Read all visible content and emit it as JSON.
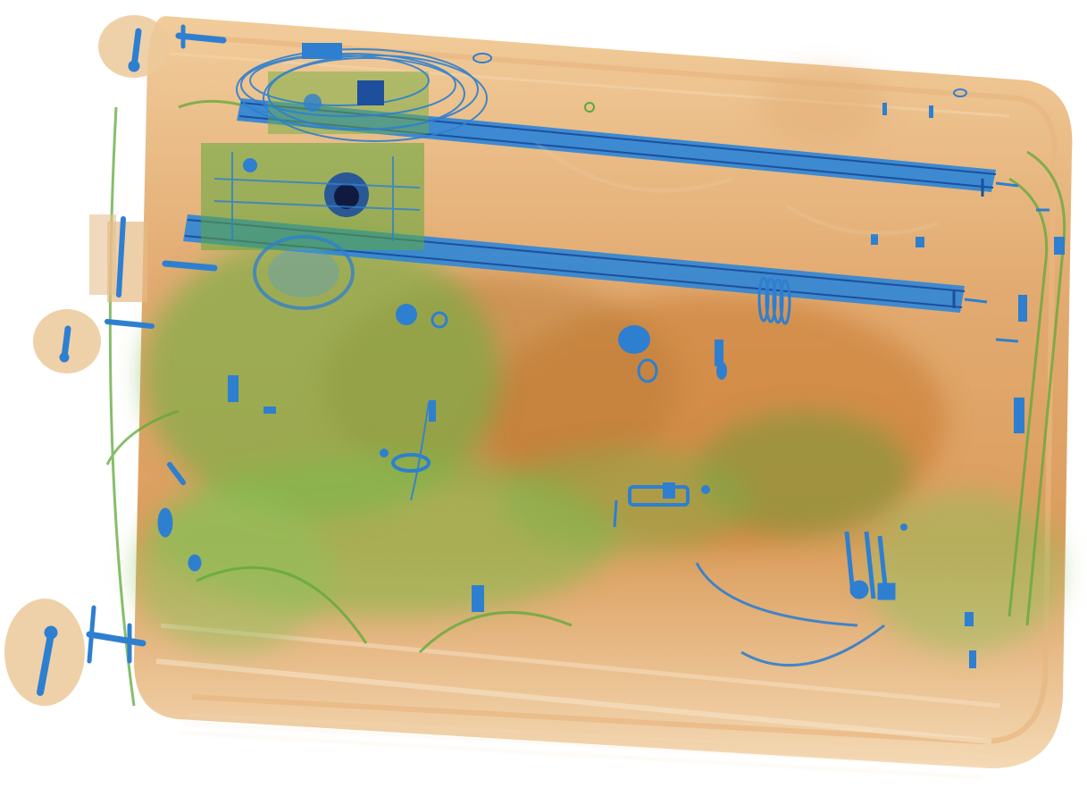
{
  "scan": {
    "colors": {
      "background": "#ffffff",
      "organic": "#d9934a",
      "organic_light": "#f0c892",
      "mixed": "#6fae3f",
      "mixed_light": "#a8d27a",
      "metal": "#2e7fd0",
      "metal_dark": "#1d4f9c",
      "dense": "#101a40"
    },
    "icons": {
      "wheel": "wheel-icon",
      "rail": "telescopic-rail",
      "electronics": "circuit-board",
      "spring": "coil-spring",
      "padlock": "padlock-icon"
    }
  }
}
